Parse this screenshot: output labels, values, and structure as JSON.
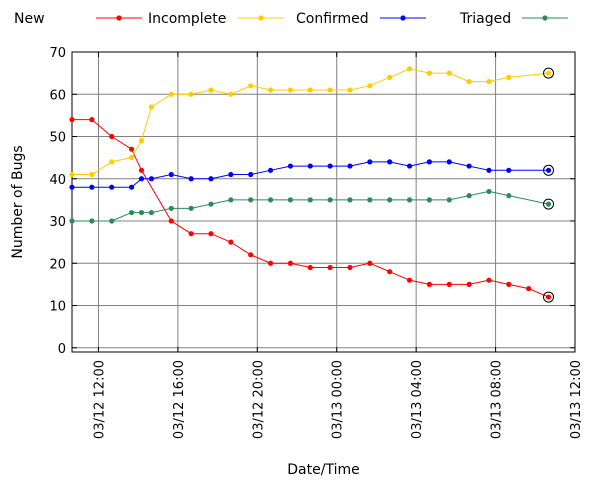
{
  "chart_data": {
    "type": "line",
    "xlabel": "Date/Time",
    "ylabel": "Number of Bugs",
    "ylim": [
      0,
      70
    ],
    "yticks": [
      0,
      10,
      20,
      30,
      40,
      50,
      60,
      70
    ],
    "xlim": [
      "03/12 10:40",
      "03/13 12:00"
    ],
    "xticks": [
      "03/12 12:00",
      "03/12 16:00",
      "03/12 20:00",
      "03/13 00:00",
      "03/13 04:00",
      "03/13 08:00",
      "03/13 12:00"
    ],
    "grid": true,
    "legend": "top",
    "x": [
      "03/12 10:40",
      "03/12 11:40",
      "03/12 12:40",
      "03/12 13:40",
      "03/12 14:10",
      "03/12 14:40",
      "03/12 15:40",
      "03/12 16:40",
      "03/12 17:40",
      "03/12 18:40",
      "03/12 19:40",
      "03/12 20:40",
      "03/12 21:40",
      "03/12 22:40",
      "03/12 23:40",
      "03/13 00:40",
      "03/13 01:40",
      "03/13 02:40",
      "03/13 03:40",
      "03/13 04:40",
      "03/13 05:40",
      "03/13 06:40",
      "03/13 07:40",
      "03/13 08:40",
      "03/13 09:40",
      "03/13 10:40"
    ],
    "series": [
      {
        "name": "New",
        "color": "#ff0000",
        "values": [
          54,
          54,
          50,
          47,
          42,
          null,
          30,
          27,
          27,
          25,
          22,
          20,
          20,
          19,
          19,
          19,
          20,
          18,
          16,
          15,
          15,
          15,
          16,
          15,
          14,
          12
        ]
      },
      {
        "name": "Incomplete",
        "color": "#ffcc00",
        "values": [
          41,
          41,
          44,
          45,
          49,
          57,
          60,
          60,
          61,
          60,
          62,
          61,
          61,
          61,
          61,
          61,
          62,
          64,
          66,
          65,
          65,
          63,
          63,
          64,
          null,
          65
        ]
      },
      {
        "name": "Confirmed",
        "color": "#0000ff",
        "values": [
          38,
          38,
          38,
          38,
          40,
          40,
          41,
          40,
          40,
          41,
          41,
          42,
          43,
          43,
          43,
          43,
          44,
          44,
          43,
          44,
          44,
          43,
          42,
          42,
          null,
          42
        ]
      },
      {
        "name": "Triaged",
        "color": "#2e8b57",
        "values": [
          30,
          30,
          30,
          32,
          32,
          32,
          33,
          33,
          34,
          35,
          35,
          35,
          35,
          35,
          35,
          35,
          35,
          35,
          35,
          35,
          35,
          36,
          37,
          36,
          null,
          34
        ]
      }
    ],
    "x_positions_custom": true
  }
}
